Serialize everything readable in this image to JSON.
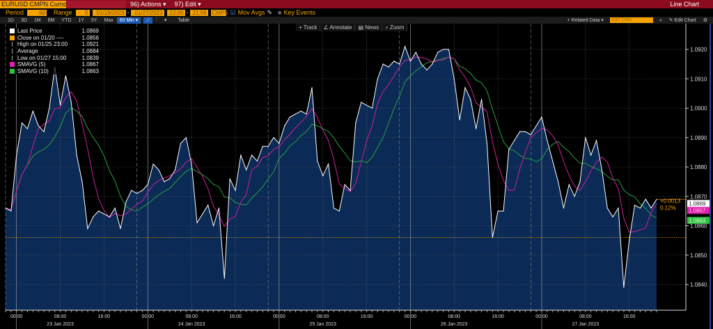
{
  "header": {
    "security": "EURUSD CMPN Curncy",
    "actions": "96) Actions ▾",
    "edit": "97) Edit ▾",
    "view": "Line Chart"
  },
  "controls": {
    "period_label": "Period",
    "period": "60",
    "range_label": "Range",
    "range": "5",
    "start_date": "01/19/2023",
    "end_date": "01/27/2023",
    "start_time": "22:00",
    "end_time": "21:59",
    "source": "CMPN",
    "mov_avgs": "Mov Avgs",
    "mov_avgs_checked": true,
    "key_events": "Key Events",
    "key_events_checked": false,
    "dash": "-"
  },
  "timeframes": [
    "1D",
    "3D",
    "1M",
    "6M",
    "YTD",
    "1Y",
    "5Y",
    "Max"
  ],
  "interval": "60 Min ▾",
  "table_label": "Table",
  "right_tools": {
    "related": "+ Related Data ▾",
    "add_data": "Add Data",
    "collapse": "«",
    "edit_chart": "✎ Edit Chart",
    "settings_icon": "gear-icon"
  },
  "chart_tools": [
    "+ Track",
    "∠ Annotate",
    "▤ News",
    "⌕ Zoom"
  ],
  "legend": [
    {
      "label": "Last Price",
      "value": "1.0869",
      "color": "#ffffff"
    },
    {
      "label": "Close on 01/20 ----",
      "value": "1.0856",
      "color": "#f5a300"
    },
    {
      "label": "High on 01/25 23:00",
      "value": "1.0921",
      "color": ""
    },
    {
      "label": "Average",
      "value": "1.0884",
      "color": ""
    },
    {
      "label": "Low on 01/27 15:00",
      "value": "1.0839",
      "color": ""
    },
    {
      "label": "SMAVG (5)",
      "value": "1.0867",
      "color": "#e020b0"
    },
    {
      "label": "SMAVG (10)",
      "value": "1.0863",
      "color": "#30c040"
    }
  ],
  "change": {
    "abs": "+0.0013",
    "pct": "0.12%"
  },
  "chart_data": {
    "type": "area",
    "ylim": [
      1.0835,
      1.0928
    ],
    "y_ticks": [
      "1.0840",
      "1.0850",
      "1.0860",
      "1.0870",
      "1.0880",
      "1.0890",
      "1.0900",
      "1.0910",
      "1.0920"
    ],
    "grid": true,
    "legend_position": "top-left",
    "close_reference": 1.0856,
    "colors": {
      "price": "#ffffff",
      "fill": "#0b2a55",
      "sma5": "#d0209a",
      "sma10": "#2aa040",
      "close": "#f5a300"
    },
    "x_ticks": [
      "00:00",
      "08:00",
      "16:00"
    ],
    "dates": [
      "23 Jan 2023",
      "24 Jan 2023",
      "25 Jan 2023",
      "26 Jan 2023",
      "27 Jan 2023"
    ],
    "series": [
      {
        "name": "Last Price",
        "values": [
          1.0866,
          1.0865,
          1.0884,
          1.0895,
          1.0893,
          1.0899,
          1.0894,
          1.0892,
          1.09,
          1.0914,
          1.0901,
          1.0911,
          1.0902,
          1.0884,
          1.0875,
          1.0859,
          1.0863,
          1.0865,
          1.0864,
          1.0863,
          1.0866,
          1.0859,
          1.0868,
          1.0872,
          1.0871,
          1.0872,
          1.0874,
          1.0881,
          1.0879,
          1.0875,
          1.0876,
          1.0879,
          1.0888,
          1.089,
          1.0881,
          1.0861,
          1.0864,
          1.0867,
          1.086,
          1.0866,
          1.0842,
          1.0876,
          1.0872,
          1.0884,
          1.0879,
          1.0884,
          1.0882,
          1.0887,
          1.0887,
          1.089,
          1.0888,
          1.0894,
          1.0897,
          1.0898,
          1.0899,
          1.0898,
          1.0907,
          1.0882,
          1.0877,
          1.0881,
          1.0866,
          1.0865,
          1.0874,
          1.0872,
          1.0895,
          1.0902,
          1.0901,
          1.09,
          1.091,
          1.0915,
          1.0914,
          1.0916,
          1.0915,
          1.0921,
          1.0916,
          1.0919,
          1.0915,
          1.0913,
          1.0915,
          1.0919,
          1.092,
          1.092,
          1.091,
          1.0896,
          1.0907,
          1.0903,
          1.0893,
          1.0903,
          1.0888,
          1.0856,
          1.0865,
          1.0865,
          1.0886,
          1.0889,
          1.0892,
          1.0892,
          1.0891,
          1.0894,
          1.0897,
          1.0889,
          1.0882,
          1.0875,
          1.0866,
          1.0874,
          1.087,
          1.0875,
          1.089,
          1.0884,
          1.0889,
          1.0879,
          1.0866,
          1.0863,
          1.0866,
          1.0839,
          1.0855,
          1.0867,
          1.0866,
          1.0869,
          1.0866,
          1.0869
        ]
      }
    ],
    "x": [
      "2023-01-22 22:00",
      "2023-01-22 23:00",
      "2023-01-23 00:00",
      "2023-01-23 01:00",
      "2023-01-23 02:00",
      "2023-01-23 03:00",
      "2023-01-23 04:00",
      "2023-01-23 05:00",
      "2023-01-23 06:00",
      "2023-01-23 07:00",
      "2023-01-23 08:00",
      "2023-01-23 09:00",
      "2023-01-23 10:00",
      "2023-01-23 11:00",
      "2023-01-23 12:00",
      "2023-01-23 13:00",
      "2023-01-23 14:00",
      "2023-01-23 15:00",
      "2023-01-23 16:00",
      "2023-01-23 17:00",
      "2023-01-23 18:00",
      "2023-01-23 19:00",
      "2023-01-23 20:00",
      "2023-01-23 21:00",
      "2023-01-23 22:00",
      "2023-01-23 23:00",
      "2023-01-24 00:00",
      "2023-01-24 01:00",
      "2023-01-24 02:00",
      "2023-01-24 03:00",
      "2023-01-24 04:00",
      "2023-01-24 05:00",
      "2023-01-24 06:00",
      "2023-01-24 07:00",
      "2023-01-24 08:00",
      "2023-01-24 09:00",
      "2023-01-24 10:00",
      "2023-01-24 11:00",
      "2023-01-24 12:00",
      "2023-01-24 13:00",
      "2023-01-24 14:00",
      "2023-01-24 15:00",
      "2023-01-24 16:00",
      "2023-01-24 17:00",
      "2023-01-24 18:00",
      "2023-01-24 19:00",
      "2023-01-24 20:00",
      "2023-01-24 21:00",
      "2023-01-24 22:00",
      "2023-01-24 23:00",
      "2023-01-25 00:00",
      "2023-01-25 01:00",
      "2023-01-25 02:00",
      "2023-01-25 03:00",
      "2023-01-25 04:00",
      "2023-01-25 05:00",
      "2023-01-25 06:00",
      "2023-01-25 07:00",
      "2023-01-25 08:00",
      "2023-01-25 09:00",
      "2023-01-25 10:00",
      "2023-01-25 11:00",
      "2023-01-25 12:00",
      "2023-01-25 13:00",
      "2023-01-25 14:00",
      "2023-01-25 15:00",
      "2023-01-25 16:00",
      "2023-01-25 17:00",
      "2023-01-25 18:00",
      "2023-01-25 19:00",
      "2023-01-25 20:00",
      "2023-01-25 21:00",
      "2023-01-25 22:00",
      "2023-01-25 23:00",
      "2023-01-26 00:00",
      "2023-01-26 01:00",
      "2023-01-26 02:00",
      "2023-01-26 03:00",
      "2023-01-26 04:00",
      "2023-01-26 05:00",
      "2023-01-26 06:00",
      "2023-01-26 07:00",
      "2023-01-26 08:00",
      "2023-01-26 09:00",
      "2023-01-26 10:00",
      "2023-01-26 11:00",
      "2023-01-26 12:00",
      "2023-01-26 13:00",
      "2023-01-26 14:00",
      "2023-01-26 15:00",
      "2023-01-26 16:00",
      "2023-01-26 17:00",
      "2023-01-26 18:00",
      "2023-01-26 19:00",
      "2023-01-26 20:00",
      "2023-01-26 21:00",
      "2023-01-26 22:00",
      "2023-01-26 23:00",
      "2023-01-27 00:00",
      "2023-01-27 01:00",
      "2023-01-27 02:00",
      "2023-01-27 03:00",
      "2023-01-27 04:00",
      "2023-01-27 05:00",
      "2023-01-27 06:00",
      "2023-01-27 07:00",
      "2023-01-27 08:00",
      "2023-01-27 09:00",
      "2023-01-27 10:00",
      "2023-01-27 11:00",
      "2023-01-27 12:00",
      "2023-01-27 13:00",
      "2023-01-27 14:00",
      "2023-01-27 15:00",
      "2023-01-27 16:00",
      "2023-01-27 17:00",
      "2023-01-27 18:00",
      "2023-01-27 19:00",
      "2023-01-27 20:00",
      "2023-01-27 21:00"
    ]
  }
}
